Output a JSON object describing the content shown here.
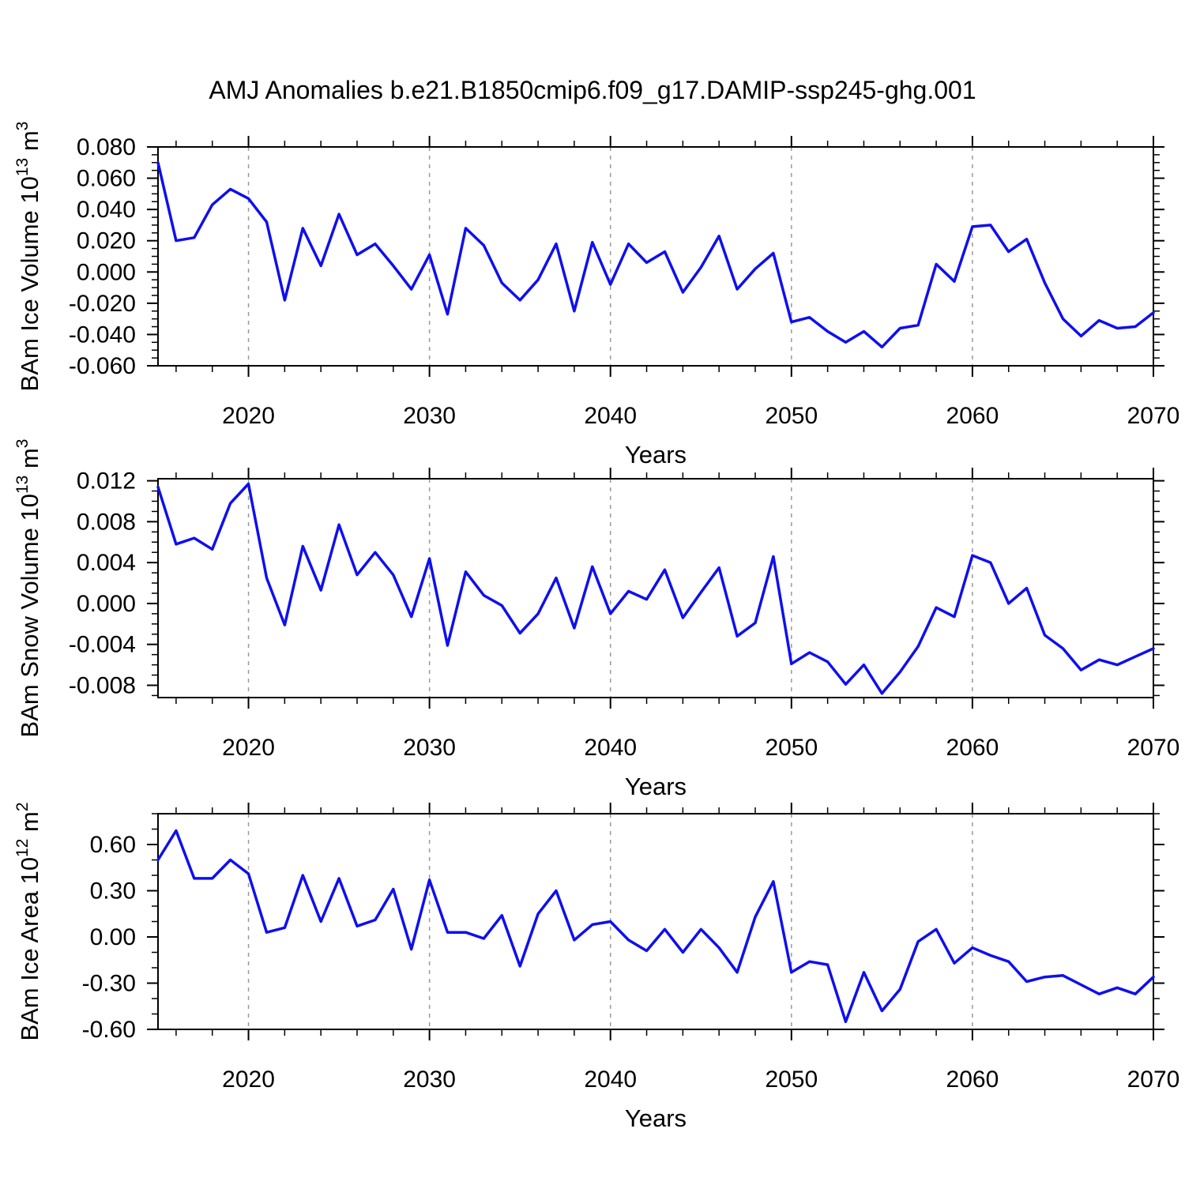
{
  "title": "AMJ Anomalies b.e21.B1850cmip6.f09_g17.DAMIP-ssp245-ghg.001",
  "x_axis_label": "Years",
  "years": [
    2015,
    2016,
    2017,
    2018,
    2019,
    2020,
    2021,
    2022,
    2023,
    2024,
    2025,
    2026,
    2027,
    2028,
    2029,
    2030,
    2031,
    2032,
    2033,
    2034,
    2035,
    2036,
    2037,
    2038,
    2039,
    2040,
    2041,
    2042,
    2043,
    2044,
    2045,
    2046,
    2047,
    2048,
    2049,
    2050,
    2051,
    2052,
    2053,
    2054,
    2055,
    2056,
    2057,
    2058,
    2059,
    2060,
    2061,
    2062,
    2063,
    2064,
    2065,
    2066,
    2067,
    2068,
    2069,
    2070
  ],
  "styles": {
    "line_color": "#0f0fef",
    "grid_color": "#999999",
    "axis_color": "#000000",
    "text_color": "#000000"
  },
  "chart_data": [
    {
      "type": "line",
      "ylabel": "BAm Ice Volume 10^13 m^3",
      "ylabel_parts": [
        {
          "t": "BAm Ice Volume 10"
        },
        {
          "t": "13",
          "sup": true
        },
        {
          "t": " m"
        },
        {
          "t": "3",
          "sup": true
        }
      ],
      "xlabel": "Years",
      "xlim": [
        2015,
        2070
      ],
      "ylim": [
        -0.06,
        0.08
      ],
      "ytick_major": 0.02,
      "ytick_minor": 0.005,
      "ytick_decimals": 3,
      "x_majors": [
        2020,
        2030,
        2040,
        2050,
        2060,
        2070
      ],
      "x_minor_step": 2,
      "grid_decades": [
        2020,
        2030,
        2040,
        2050,
        2060
      ],
      "values": [
        0.07,
        0.02,
        0.022,
        0.043,
        0.053,
        0.047,
        0.032,
        -0.018,
        0.028,
        0.004,
        0.037,
        0.011,
        0.018,
        0.004,
        -0.011,
        0.011,
        -0.027,
        0.028,
        0.017,
        -0.007,
        -0.018,
        -0.005,
        0.018,
        -0.025,
        0.019,
        -0.008,
        0.018,
        0.006,
        0.013,
        -0.013,
        0.003,
        0.023,
        -0.011,
        0.002,
        0.012,
        -0.032,
        -0.029,
        -0.038,
        -0.045,
        -0.038,
        -0.048,
        -0.036,
        -0.034,
        0.005,
        -0.006,
        0.029,
        0.03,
        0.013,
        0.021,
        -0.007,
        -0.03,
        -0.041,
        -0.031,
        -0.036,
        -0.035,
        -0.026
      ]
    },
    {
      "type": "line",
      "ylabel": "BAm Snow Volume 10^13 m^3",
      "ylabel_parts": [
        {
          "t": "BAm Snow Volume 10"
        },
        {
          "t": "13",
          "sup": true
        },
        {
          "t": " m"
        },
        {
          "t": "3",
          "sup": true
        }
      ],
      "xlabel": "Years",
      "xlim": [
        2015,
        2070
      ],
      "ylim": [
        -0.0092,
        0.0122
      ],
      "ytick_major": 0.004,
      "ytick_minor": 0.001,
      "ytick_decimals": 3,
      "x_majors": [
        2020,
        2030,
        2040,
        2050,
        2060,
        2070
      ],
      "x_minor_step": 2,
      "grid_decades": [
        2020,
        2030,
        2040,
        2050,
        2060
      ],
      "values": [
        0.0114,
        0.0058,
        0.0064,
        0.0053,
        0.0098,
        0.0117,
        0.0025,
        -0.0021,
        0.0056,
        0.0013,
        0.0077,
        0.0028,
        0.005,
        0.0028,
        -0.0013,
        0.0044,
        -0.0041,
        0.0031,
        0.0008,
        -0.0002,
        -0.0029,
        -0.001,
        0.0025,
        -0.0024,
        0.0036,
        -0.001,
        0.0012,
        0.0004,
        0.0033,
        -0.0014,
        0.0011,
        0.0035,
        -0.0032,
        -0.0019,
        0.0046,
        -0.0059,
        -0.0048,
        -0.0057,
        -0.0079,
        -0.006,
        -0.0088,
        -0.0067,
        -0.0042,
        -0.0004,
        -0.0013,
        0.0047,
        0.004,
        0.0,
        0.0015,
        -0.0031,
        -0.0044,
        -0.0065,
        -0.0055,
        -0.006,
        -0.0052,
        -0.0044
      ]
    },
    {
      "type": "line",
      "ylabel": "BAm Ice Area 10^12 m^2",
      "ylabel_parts": [
        {
          "t": "BAm Ice Area 10"
        },
        {
          "t": "12",
          "sup": true
        },
        {
          "t": " m"
        },
        {
          "t": "2",
          "sup": true
        }
      ],
      "xlabel": "Years",
      "xlim": [
        2015,
        2070
      ],
      "ylim": [
        -0.6,
        0.8
      ],
      "ytick_major": 0.3,
      "ytick_minor": 0.1,
      "ytick_decimals": 2,
      "x_majors": [
        2020,
        2030,
        2040,
        2050,
        2060,
        2070
      ],
      "x_minor_step": 2,
      "grid_decades": [
        2020,
        2030,
        2040,
        2050,
        2060
      ],
      "values": [
        0.5,
        0.69,
        0.38,
        0.38,
        0.5,
        0.41,
        0.03,
        0.06,
        0.4,
        0.1,
        0.38,
        0.07,
        0.11,
        0.31,
        -0.08,
        0.37,
        0.03,
        0.03,
        -0.01,
        0.14,
        -0.19,
        0.15,
        0.3,
        -0.02,
        0.08,
        0.1,
        -0.02,
        -0.09,
        0.05,
        -0.1,
        0.05,
        -0.07,
        -0.23,
        0.13,
        0.36,
        -0.23,
        -0.16,
        -0.18,
        -0.55,
        -0.23,
        -0.48,
        -0.34,
        -0.03,
        0.05,
        -0.17,
        -0.07,
        -0.12,
        -0.16,
        -0.29,
        -0.26,
        -0.25,
        -0.31,
        -0.37,
        -0.33,
        -0.37,
        -0.26
      ]
    }
  ]
}
